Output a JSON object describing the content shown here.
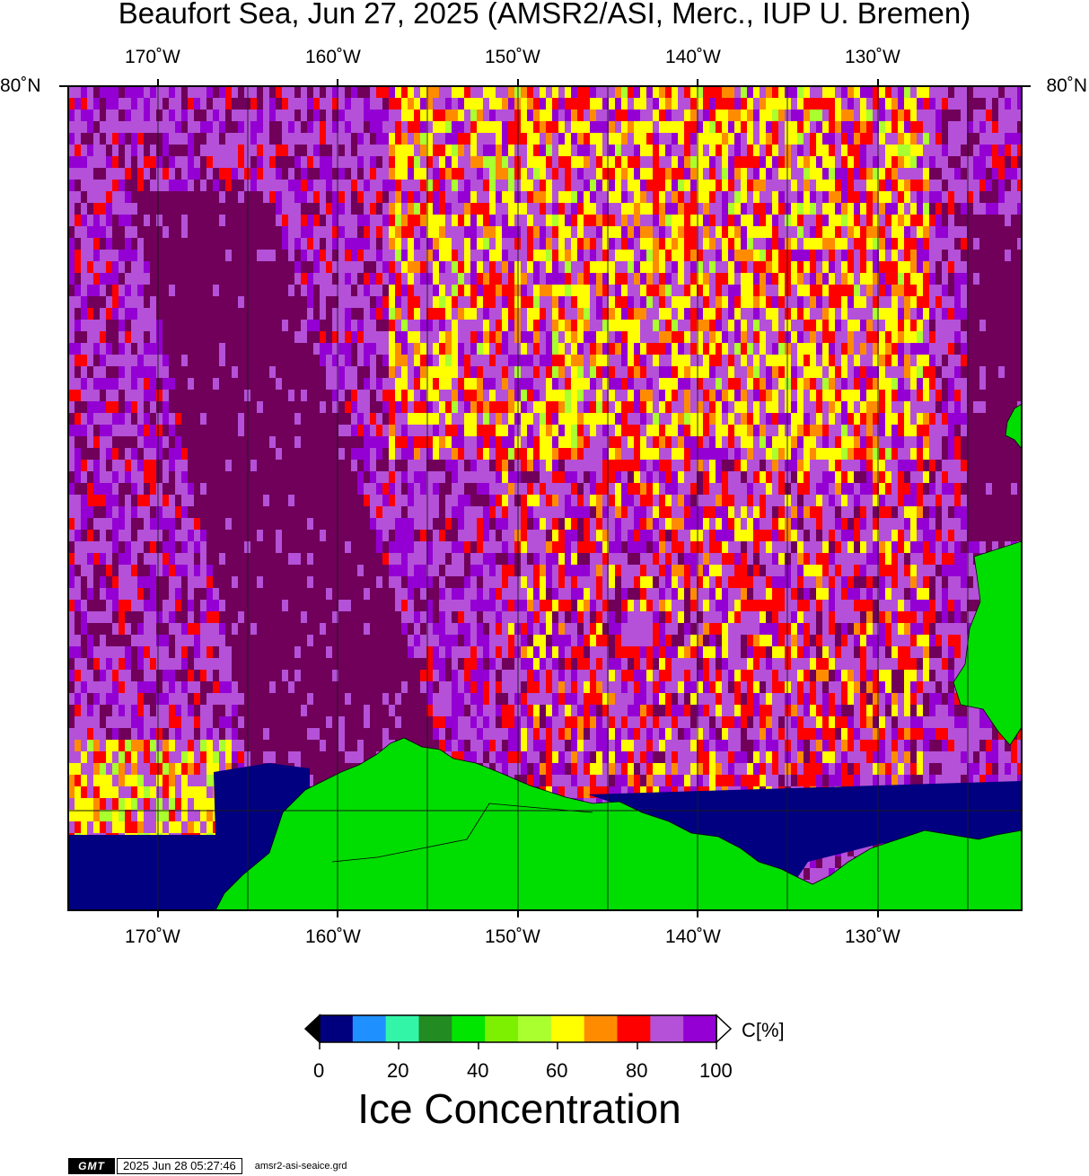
{
  "title": "Beaufort Sea, Jun 27, 2025 (AMSR2/ASI, Merc., IUP U. Bremen)",
  "axes": {
    "lon_ticks": [
      "170˚W",
      "160˚W",
      "150˚W",
      "140˚W",
      "130˚W"
    ],
    "lat_tick": "80˚N"
  },
  "colorbar": {
    "tick_labels": [
      "0",
      "20",
      "40",
      "60",
      "80",
      "100"
    ],
    "unit": "C[%]",
    "title": "Ice Concentration",
    "colors": [
      "#00007f",
      "#1e90ff",
      "#33f5a8",
      "#228b22",
      "#00e600",
      "#7cf000",
      "#aaff2e",
      "#ffff00",
      "#ff8c00",
      "#ff0000",
      "#b451d8",
      "#9400d3"
    ],
    "under_color": "#000000",
    "over_color": "#ffffff"
  },
  "map_colors": {
    "land": "#00dd00",
    "open_water": "#000080",
    "ice_high": "#70005a"
  },
  "footer": {
    "logo": "GMT",
    "timestamp": "2025 Jun 28 05:27:46",
    "grid_file": "amsr2-asi-seaice.grd"
  }
}
